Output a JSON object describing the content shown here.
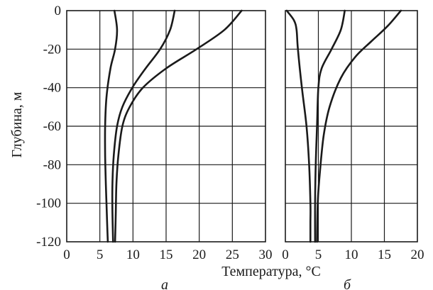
{
  "chart_data": [
    {
      "type": "line",
      "panel_label": "а",
      "ylabel": "Глубина, м",
      "xlim": [
        0,
        30
      ],
      "ylim": [
        -120,
        0
      ],
      "xticks": [
        "0",
        "5",
        "10",
        "15",
        "20",
        "25",
        "30"
      ],
      "yticks": [
        "0",
        "-20",
        "-40",
        "-60",
        "-80",
        "-100",
        "-120"
      ],
      "grid": true,
      "series": [
        {
          "x": [
            7.2,
            7.6,
            7.3,
            6.6,
            6.0,
            5.8,
            5.8,
            5.9,
            6.0,
            6.1,
            6.2
          ],
          "y": [
            0,
            -10,
            -20,
            -30,
            -45,
            -60,
            -75,
            -90,
            -100,
            -110,
            -120
          ]
        },
        {
          "x": [
            16.3,
            15.6,
            14.1,
            11.9,
            9.9,
            8.4,
            7.6,
            7.1,
            6.9,
            6.9,
            7.0
          ],
          "y": [
            0,
            -10,
            -20,
            -30,
            -40,
            -50,
            -60,
            -75,
            -90,
            -105,
            -120
          ]
        },
        {
          "x": [
            26.4,
            23.8,
            19.6,
            15.0,
            11.5,
            9.5,
            8.4,
            7.8,
            7.5,
            7.4,
            7.3
          ],
          "y": [
            0,
            -10,
            -20,
            -30,
            -40,
            -50,
            -60,
            -75,
            -90,
            -105,
            -120
          ]
        }
      ]
    },
    {
      "type": "line",
      "panel_label": "б",
      "xlim": [
        0,
        20
      ],
      "ylim": [
        -120,
        0
      ],
      "xticks": [
        "0",
        "5",
        "10",
        "15",
        "20"
      ],
      "grid": true,
      "series": [
        {
          "x": [
            0.2,
            1.3,
            1.7,
            1.9,
            2.5,
            3.2,
            3.6,
            3.8,
            3.8,
            3.8
          ],
          "y": [
            0,
            -5,
            -10,
            -20,
            -40,
            -60,
            -80,
            -100,
            -110,
            -120
          ]
        },
        {
          "x": [
            9.0,
            8.4,
            7.0,
            5.5,
            5.0,
            4.8,
            4.6,
            4.5,
            4.5
          ],
          "y": [
            0,
            -10,
            -20,
            -30,
            -40,
            -60,
            -80,
            -100,
            -120
          ]
        },
        {
          "x": [
            17.5,
            15.5,
            13.0,
            10.6,
            8.4,
            6.7,
            5.8,
            5.2,
            4.9,
            4.8
          ],
          "y": [
            0,
            -8,
            -16,
            -24,
            -35,
            -50,
            -65,
            -85,
            -100,
            -120
          ]
        }
      ]
    }
  ],
  "xlabel": "Температура, °C"
}
